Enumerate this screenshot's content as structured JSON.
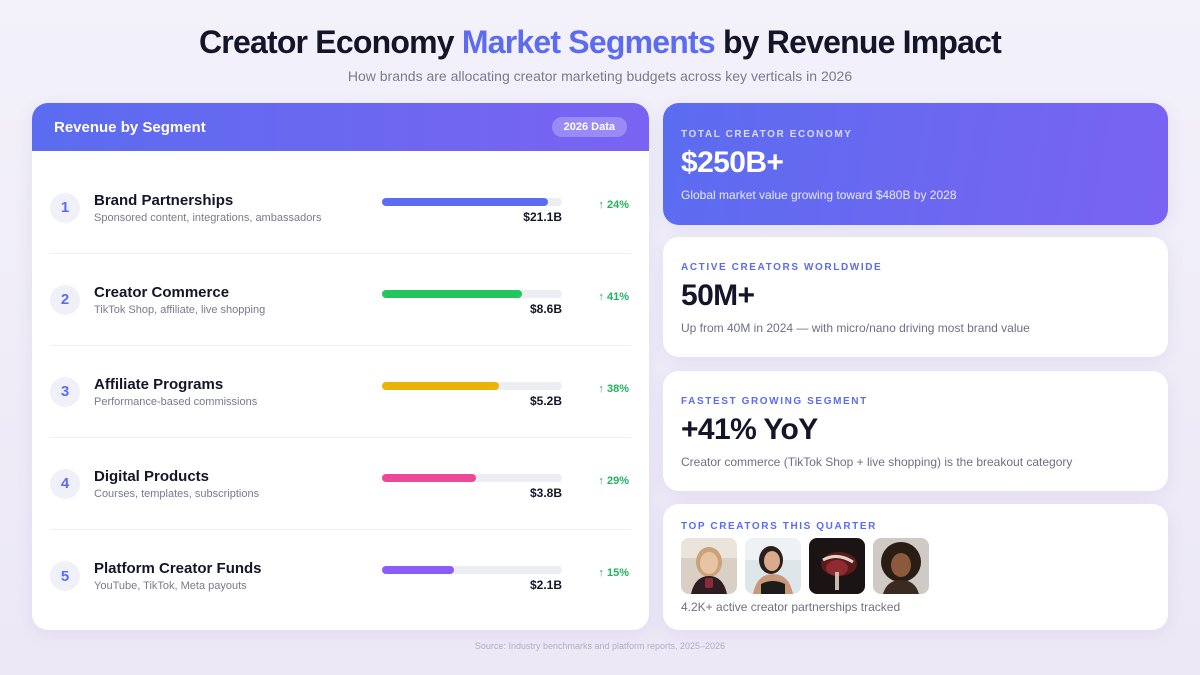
{
  "header": {
    "title_prefix": "Creator Economy",
    "title_highlight": "Market Segments",
    "title_suffix": "by Revenue Impact",
    "subtitle": "How brands are allocating creator marketing budgets across key verticals in 2026"
  },
  "segments_card": {
    "title": "Revenue by Segment",
    "badge": "2026 Data",
    "items": [
      {
        "rank": "1",
        "name": "Brand Partnerships",
        "desc": "Sponsored content, integrations, ambassadors",
        "value": "$21.1B",
        "growth": "↑ 24%",
        "share": 0.92,
        "color": "#5b6cf0"
      },
      {
        "rank": "2",
        "name": "Creator Commerce",
        "desc": "TikTok Shop, affiliate, live shopping",
        "value": "$8.6B",
        "growth": "↑ 41%",
        "share": 0.78,
        "color": "#22c55e"
      },
      {
        "rank": "3",
        "name": "Affiliate Programs",
        "desc": "Performance-based commissions",
        "value": "$5.2B",
        "growth": "↑ 38%",
        "share": 0.65,
        "color": "#eab308"
      },
      {
        "rank": "4",
        "name": "Digital Products",
        "desc": "Courses, templates, subscriptions",
        "value": "$3.8B",
        "growth": "↑ 29%",
        "share": 0.52,
        "color": "#ec4899"
      },
      {
        "rank": "5",
        "name": "Platform Creator Funds",
        "desc": "YouTube, TikTok, Meta payouts",
        "value": "$2.1B",
        "growth": "↑ 15%",
        "share": 0.4,
        "color": "#8b5cf6"
      }
    ]
  },
  "stats": {
    "total": {
      "label": "TOTAL CREATOR ECONOMY",
      "value": "$250B+",
      "desc": "Global market value growing toward $480B by 2028"
    },
    "creators": {
      "label": "ACTIVE CREATORS WORLDWIDE",
      "value": "50M+",
      "desc": "Up from 40M in 2024 — with micro/nano driving most brand value"
    },
    "fastest": {
      "label": "FASTEST GROWING SEGMENT",
      "value": "+41% YoY",
      "desc": "Creator commerce (TikTok Shop + live shopping) is the breakout category"
    },
    "top": {
      "label": "TOP CREATORS THIS QUARTER",
      "desc": "4.2K+ active creator partnerships tracked",
      "avatars": [
        "creator-1",
        "creator-2",
        "creator-3",
        "creator-4"
      ]
    }
  },
  "footer": {
    "source": "Source: Industry benchmarks and platform reports, 2025–2026"
  }
}
